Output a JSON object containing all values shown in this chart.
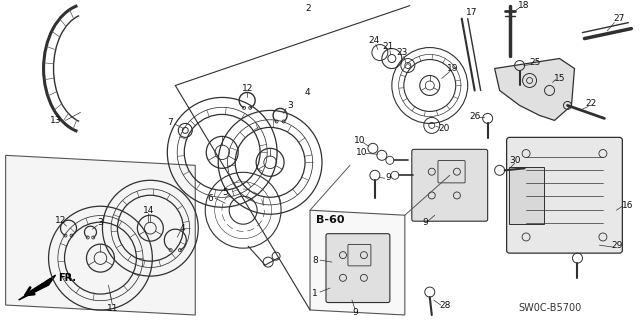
{
  "bg_color": "#ffffff",
  "ref_code": "SW0C-B5700",
  "line_color": "#303030",
  "light_gray": "#888888"
}
